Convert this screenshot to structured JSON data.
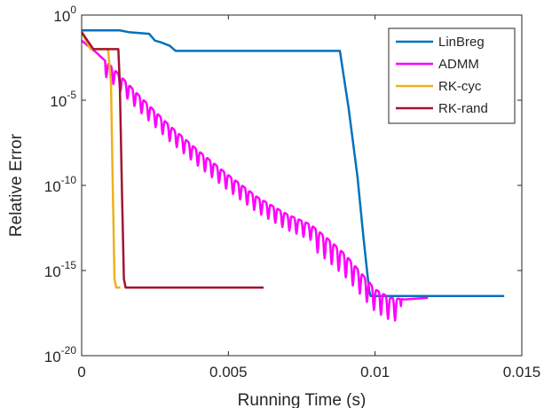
{
  "chart_data": {
    "type": "line",
    "title": "",
    "xlabel": "Running Time (s)",
    "ylabel": "Relative Error",
    "xlim": [
      0,
      0.015
    ],
    "ylim_log10": [
      -20,
      0
    ],
    "yscale": "log",
    "x_ticks": [
      0,
      0.005,
      0.01,
      0.015
    ],
    "x_tick_labels": [
      "0",
      "0.005",
      "0.01",
      "0.015"
    ],
    "y_ticks_log10": [
      0,
      -5,
      -10,
      -15,
      -20
    ],
    "y_tick_labels": [
      {
        "base": "10",
        "exp": "0"
      },
      {
        "base": "10",
        "exp": "-5"
      },
      {
        "base": "10",
        "exp": "-10"
      },
      {
        "base": "10",
        "exp": "-15"
      },
      {
        "base": "10",
        "exp": "-20"
      }
    ],
    "grid": false,
    "legend_position": "top-right",
    "series": [
      {
        "name": "LinBreg",
        "color": "#0072BD",
        "log10_error": true,
        "points": [
          [
            0,
            -0.9
          ],
          [
            0.0013,
            -0.9
          ],
          [
            0.0016,
            -1.0
          ],
          [
            0.0023,
            -1.1
          ],
          [
            0.0025,
            -1.5
          ],
          [
            0.0027,
            -1.6
          ],
          [
            0.003,
            -1.8
          ],
          [
            0.0032,
            -2.1
          ],
          [
            0.0088,
            -2.1
          ],
          [
            0.0091,
            -5.5
          ],
          [
            0.0094,
            -9.5
          ],
          [
            0.0096,
            -13.0
          ],
          [
            0.0098,
            -16.2
          ],
          [
            0.00985,
            -16.5
          ],
          [
            0.0144,
            -16.5
          ]
        ]
      },
      {
        "name": "ADMM",
        "color": "#FF00FF",
        "log10_error": true,
        "points": [
          [
            0,
            -1.5
          ],
          [
            0.0005,
            -2.2
          ],
          [
            0.001,
            -3.0
          ],
          [
            0.002,
            -4.8
          ],
          [
            0.003,
            -6.5
          ],
          [
            0.004,
            -8.0
          ],
          [
            0.005,
            -9.4
          ],
          [
            0.006,
            -10.7
          ],
          [
            0.007,
            -11.7
          ],
          [
            0.0078,
            -12.3
          ],
          [
            0.0085,
            -13.3
          ],
          [
            0.009,
            -14.1
          ],
          [
            0.0095,
            -15.1
          ],
          [
            0.01,
            -16.1
          ],
          [
            0.0105,
            -16.6
          ],
          [
            0.011,
            -16.7
          ],
          [
            0.0118,
            -16.6
          ]
        ],
        "oscillating": true
      },
      {
        "name": "RK-cyc",
        "color": "#EDB120",
        "log10_error": true,
        "points": [
          [
            0,
            -1.0
          ],
          [
            0.0003,
            -2.0
          ],
          [
            0.0009,
            -2.0
          ],
          [
            0.001,
            -4.0
          ],
          [
            0.00106,
            -10.0
          ],
          [
            0.00112,
            -15.5
          ],
          [
            0.00118,
            -16.0
          ],
          [
            0.00132,
            -16.0
          ]
        ]
      },
      {
        "name": "RK-rand",
        "color": "#A2142F",
        "log10_error": true,
        "points": [
          [
            0,
            -1.0
          ],
          [
            0.0004,
            -2.0
          ],
          [
            0.00125,
            -2.0
          ],
          [
            0.0013,
            -4.0
          ],
          [
            0.00137,
            -10.0
          ],
          [
            0.00144,
            -15.5
          ],
          [
            0.0015,
            -16.0
          ],
          [
            0.0062,
            -16.0
          ]
        ]
      }
    ]
  }
}
